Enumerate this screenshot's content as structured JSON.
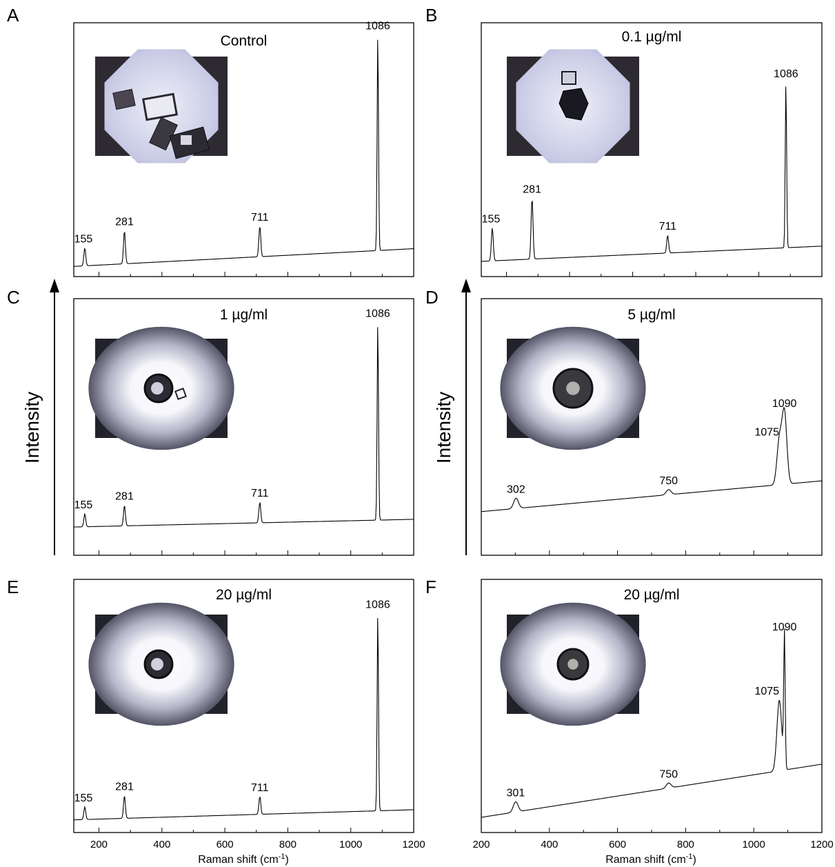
{
  "figure": {
    "y_axis_label": "Intensity",
    "x_axis_label": "Raman shift (cm",
    "x_axis_label_sup": "-1",
    "x_axis_label_close": ")"
  },
  "chart_data": [
    {
      "panel": "A",
      "type": "line",
      "title": "Control",
      "xlim": [
        120,
        1200
      ],
      "ylim": [
        0,
        1
      ],
      "inset": "micrograph-calcite-rhombohedra",
      "peaks": [
        {
          "x": 155,
          "label": "155",
          "height": 0.07
        },
        {
          "x": 281,
          "label": "281",
          "height": 0.13
        },
        {
          "x": 711,
          "label": "711",
          "height": 0.12
        },
        {
          "x": 1086,
          "label": "1086",
          "height": 0.85
        }
      ],
      "baseline": {
        "start": 0.04,
        "end": 0.11
      }
    },
    {
      "panel": "B",
      "type": "line",
      "title": "0.1 µg/ml",
      "xlim": [
        120,
        1200
      ],
      "ylim": [
        0,
        1
      ],
      "inset": "micrograph-calcite-crystal",
      "peaks": [
        {
          "x": 155,
          "label": "155",
          "height": 0.13
        },
        {
          "x": 281,
          "label": "281",
          "height": 0.24
        },
        {
          "x": 711,
          "label": "711",
          "height": 0.07
        },
        {
          "x": 1086,
          "label": "1086",
          "height": 0.65
        }
      ],
      "baseline": {
        "start": 0.06,
        "end": 0.12
      }
    },
    {
      "panel": "C",
      "type": "line",
      "title": "1 µg/ml",
      "xlim": [
        120,
        1200
      ],
      "ylim": [
        0,
        1
      ],
      "inset": "micrograph-crystal-aggregate",
      "peaks": [
        {
          "x": 155,
          "label": "155",
          "height": 0.05
        },
        {
          "x": 281,
          "label": "281",
          "height": 0.08
        },
        {
          "x": 711,
          "label": "711",
          "height": 0.08
        },
        {
          "x": 1086,
          "label": "1086",
          "height": 0.77
        }
      ],
      "baseline": {
        "start": 0.11,
        "end": 0.14
      }
    },
    {
      "panel": "D",
      "type": "line",
      "title": "5 µg/ml",
      "xlim": [
        200,
        1200
      ],
      "ylim": [
        0,
        1
      ],
      "inset": "micrograph-vaterite-spherulite",
      "peaks": [
        {
          "x": 302,
          "label": "302",
          "height": 0.04
        },
        {
          "x": 750,
          "label": "750",
          "height": 0.02
        },
        {
          "x": 1075,
          "label": "1075",
          "height": 0.17
        },
        {
          "x": 1090,
          "label": "1090",
          "height": 0.28
        }
      ],
      "baseline": {
        "start": 0.17,
        "end": 0.29
      }
    },
    {
      "panel": "E",
      "type": "line",
      "title": "20 µg/ml",
      "xlim": [
        120,
        1200
      ],
      "ylim": [
        0,
        1
      ],
      "inset": "micrograph-crystal-aggregate",
      "peaks": [
        {
          "x": 155,
          "label": "155",
          "height": 0.05
        },
        {
          "x": 281,
          "label": "281",
          "height": 0.09
        },
        {
          "x": 711,
          "label": "711",
          "height": 0.07
        },
        {
          "x": 1086,
          "label": "1086",
          "height": 0.78
        }
      ],
      "baseline": {
        "start": 0.05,
        "end": 0.09
      }
    },
    {
      "panel": "F",
      "type": "line",
      "title": "20 µg/ml",
      "xlim": [
        200,
        1200
      ],
      "ylim": [
        0,
        1
      ],
      "inset": "micrograph-vaterite-spherulite",
      "peaks": [
        {
          "x": 301,
          "label": "301",
          "height": 0.04
        },
        {
          "x": 750,
          "label": "750",
          "height": 0.02
        },
        {
          "x": 1075,
          "label": "1075",
          "height": 0.28
        },
        {
          "x": 1090,
          "label": "1090",
          "height": 0.53
        }
      ],
      "baseline": {
        "start": 0.06,
        "end": 0.27
      }
    }
  ],
  "x_ticks": {
    "E": [
      "200",
      "400",
      "600",
      "800",
      "1000",
      "1200"
    ],
    "F": [
      "200",
      "400",
      "600",
      "800",
      "1000",
      "1200"
    ]
  }
}
